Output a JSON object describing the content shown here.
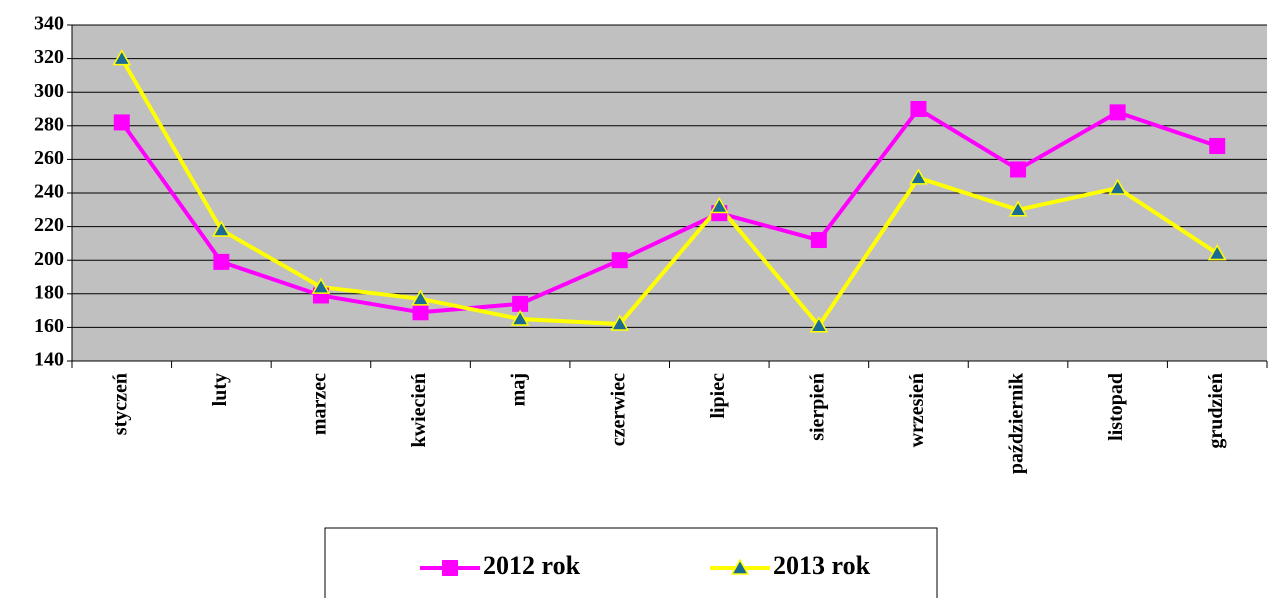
{
  "chart_data": {
    "type": "line",
    "categories": [
      "styczeń",
      "luty",
      "marzec",
      "kwiecień",
      "maj",
      "czerwiec",
      "lipiec",
      "sierpień",
      "wrzesień",
      "październik",
      "listopad",
      "grudzień"
    ],
    "series": [
      {
        "name": "2012 rok",
        "color": "#ff00ff",
        "marker": "square",
        "marker_color": "#ff00ff",
        "values": [
          282,
          199,
          179,
          169,
          174,
          200,
          228,
          212,
          290,
          254,
          288,
          268
        ]
      },
      {
        "name": "2013 rok",
        "color": "#ffff00",
        "marker": "triangle",
        "marker_color": "#1b6c94",
        "values": [
          320,
          218,
          184,
          177,
          165,
          162,
          232,
          161,
          249,
          230,
          243,
          204
        ]
      }
    ],
    "ylim": [
      140,
      340
    ],
    "yticks": [
      140,
      160,
      180,
      200,
      220,
      240,
      260,
      280,
      300,
      320,
      340
    ],
    "grid": true,
    "legend": "bottom"
  }
}
